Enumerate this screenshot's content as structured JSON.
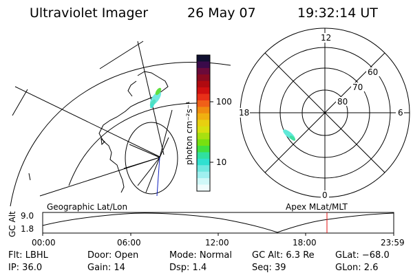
{
  "header": {
    "instrument": "Ultraviolet Imager",
    "date": "26 May 07",
    "time": "19:32:14 UT"
  },
  "left_panel": {
    "label": "Geographic Lat/Lon"
  },
  "colorbar": {
    "unit_label": "photon cm⁻²s⁻¹",
    "ticks": [
      "100",
      "10"
    ],
    "colors": [
      "#101030",
      "#3a0a4a",
      "#6a0a3a",
      "#8a0a20",
      "#b00a10",
      "#d01010",
      "#e83018",
      "#f06018",
      "#f08c10",
      "#f0b010",
      "#e8d010",
      "#d8e010",
      "#a8e010",
      "#78e010",
      "#40e040",
      "#30e0a0",
      "#30e0d0",
      "#70e8e0",
      "#a0f0f0",
      "#d0f8f8",
      "#f0fcfc"
    ]
  },
  "polar": {
    "label": "Apex MLat/MLT",
    "mlt_labels": [
      "12",
      "18",
      "6",
      "0"
    ],
    "mlat_labels": [
      "60",
      "70",
      "80"
    ]
  },
  "timeline": {
    "ylabel": "GC Alt",
    "ytick_top": "9.0",
    "ytick_bottom": "1.8",
    "xticks": [
      "00:00",
      "06:00",
      "12:00",
      "18:00",
      "23:59"
    ],
    "marker_color": "#e01010"
  },
  "info": {
    "flt": "Flt: LBHL",
    "ip": "IP: 36.0",
    "door": "Door: Open",
    "gain": "Gain: 14",
    "mode": "Mode: Normal",
    "dsp": "Dsp:     1.4",
    "gcalt": "GC Alt: 6.3 Re",
    "seq": "Seq: 39",
    "glat": "GLat:  −68.0",
    "glon": "GLon:    2.6"
  }
}
